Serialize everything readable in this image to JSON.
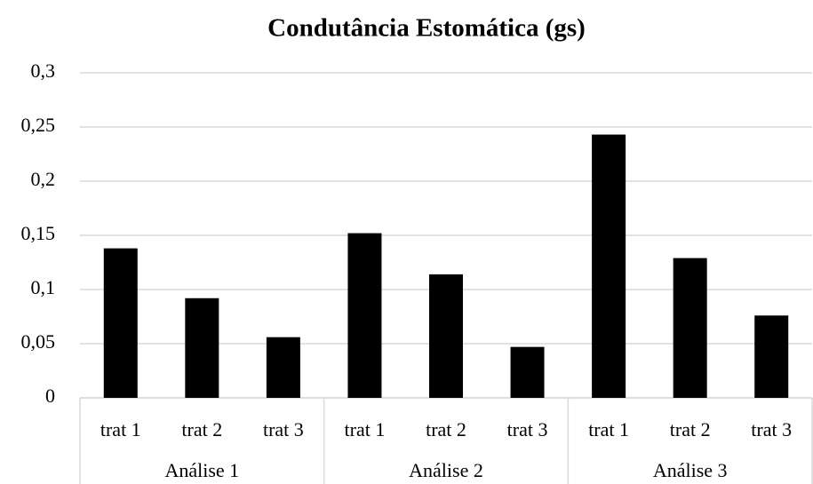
{
  "chart_data": {
    "type": "bar",
    "title": "Condutância Estomática (gs)",
    "categories": [
      "trat 1",
      "trat 2",
      "trat 3",
      "trat 1",
      "trat 2",
      "trat 3",
      "trat 1",
      "trat 2",
      "trat 3"
    ],
    "groups": [
      "Análise 1",
      "Análise 2",
      "Análise 3"
    ],
    "values": [
      0.138,
      0.092,
      0.056,
      0.152,
      0.114,
      0.047,
      0.243,
      0.129,
      0.076
    ],
    "color": "#000000",
    "ylim": [
      0,
      0.3
    ],
    "yticks": [
      0,
      {
        "value": 0.05,
        "label": "0,05"
      },
      {
        "value": 0.1,
        "label": "0,1"
      },
      {
        "value": 0.15,
        "label": "0,15"
      },
      {
        "value": 0.2,
        "label": "0,2"
      },
      {
        "value": 0.25,
        "label": "0,25"
      },
      {
        "value": 0.3,
        "label": "0,3"
      }
    ],
    "grid": true
  }
}
